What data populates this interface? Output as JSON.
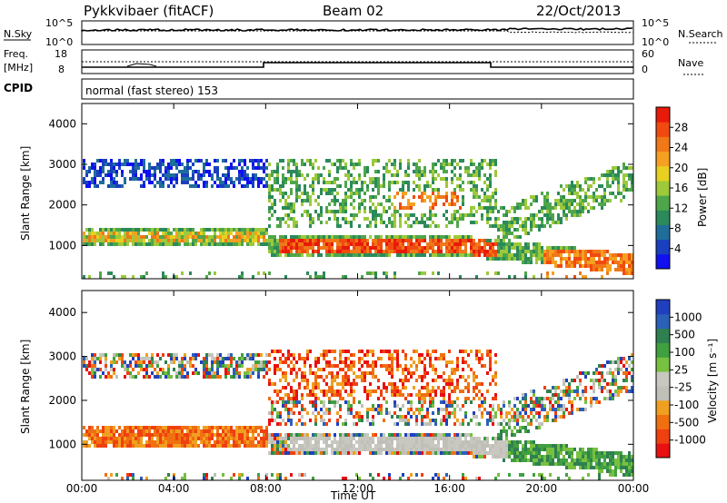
{
  "header": {
    "station": "Pykkvibaer (fitACF)",
    "beam": "Beam 02",
    "date": "22/Oct/2013"
  },
  "strips": {
    "nsky": {
      "label": "N.Sky",
      "ticks": [
        "10^5",
        "10^0"
      ],
      "right_label": "N.Search",
      "right_ticks": [
        "10^5",
        "10^0"
      ]
    },
    "freq": {
      "label_line1": "Freq.",
      "label_line2": "[MHz]",
      "ticks": [
        "18",
        "8"
      ],
      "right_label": "Nave",
      "right_ticks": [
        "60",
        "0"
      ]
    },
    "cpid": {
      "label": "CPID",
      "text": "normal (fast stereo) 153"
    }
  },
  "colors": {
    "power_scale": [
      "#1010f0",
      "#1a3fbf",
      "#1f6e9a",
      "#2b8a5a",
      "#4fa64a",
      "#9dc93a",
      "#e8d020",
      "#f5a020",
      "#f07818",
      "#f04a10",
      "#e81a0a"
    ],
    "velocity_scale": [
      "#2040c0",
      "#2b60b8",
      "#2f8050",
      "#40a040",
      "#78c040",
      "#c8c8c0",
      "#c0c0b8",
      "#f0a020",
      "#f07010",
      "#f04010",
      "#e81010"
    ]
  },
  "chart_data": [
    {
      "type": "heatmap",
      "name": "power",
      "ylabel": "Slant Range [km]",
      "xlabel": "Time UT",
      "x_ticks": [
        "00:00",
        "04:00",
        "08:00",
        "12:00",
        "16:00",
        "20:00",
        "00:00"
      ],
      "y_ticks": [
        "1000",
        "2000",
        "3000",
        "4000"
      ],
      "xlim_hours": [
        0,
        24
      ],
      "ylim_km": [
        180,
        4500
      ],
      "colorbar": {
        "label": "Power [dB]",
        "ticks": [
          "4",
          "8",
          "12",
          "16",
          "20",
          "24",
          "28"
        ],
        "range": [
          0,
          30
        ]
      }
    },
    {
      "type": "heatmap",
      "name": "velocity",
      "ylabel": "Slant Range [km]",
      "xlabel": "Time UT",
      "x_ticks": [
        "00:00",
        "04:00",
        "08:00",
        "12:00",
        "16:00",
        "20:00",
        "00:00"
      ],
      "y_ticks": [
        "1000",
        "2000",
        "3000",
        "4000"
      ],
      "xlim_hours": [
        0,
        24
      ],
      "ylim_km": [
        180,
        4500
      ],
      "colorbar": {
        "label": "Velocity [m s⁻¹]",
        "ticks": [
          "1000",
          "500",
          "100",
          "25",
          "-25",
          "-100",
          "-500",
          "-1000"
        ]
      }
    }
  ],
  "axis_label_bottom": "Time UT"
}
